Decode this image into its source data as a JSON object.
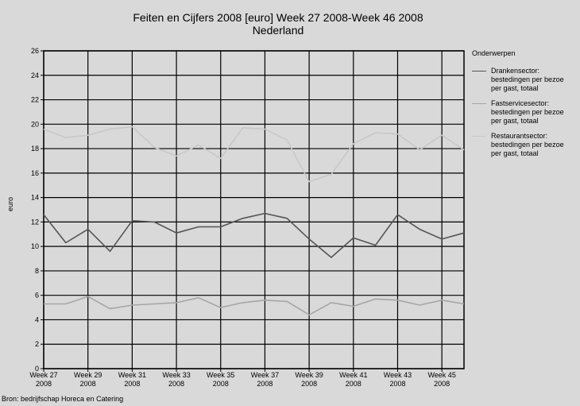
{
  "chart_data": {
    "type": "line",
    "title": "Feiten en Cijfers 2008 [euro] Week 27 2008-Week 46 2008",
    "subtitle": "Nederland",
    "ylabel": "euro",
    "ylim": [
      0,
      26
    ],
    "yticks": [
      "0",
      "2",
      "4",
      "6",
      "8",
      "10",
      "12",
      "14",
      "16",
      "18",
      "20",
      "22",
      "24",
      "26"
    ],
    "x": [
      27,
      28,
      29,
      30,
      31,
      32,
      33,
      34,
      35,
      36,
      37,
      38,
      39,
      40,
      41,
      42,
      43,
      44,
      45,
      46
    ],
    "xticks": [
      {
        "week": 27,
        "line1": "Week 27",
        "line2": "2008"
      },
      {
        "week": 29,
        "line1": "Week 29",
        "line2": "2008"
      },
      {
        "week": 31,
        "line1": "Week 31",
        "line2": "2008"
      },
      {
        "week": 33,
        "line1": "Week 33",
        "line2": "2008"
      },
      {
        "week": 35,
        "line1": "Week 35",
        "line2": "2008"
      },
      {
        "week": 37,
        "line1": "Week 37",
        "line2": "2008"
      },
      {
        "week": 39,
        "line1": "Week 39",
        "line2": "2008"
      },
      {
        "week": 41,
        "line1": "Week 41",
        "line2": "2008"
      },
      {
        "week": 43,
        "line1": "Week 43",
        "line2": "2008"
      },
      {
        "week": 45,
        "line1": "Week 45",
        "line2": "2008"
      }
    ],
    "grid": true,
    "legend_title": "Onderwerpen",
    "legend_position": "right",
    "series": [
      {
        "name": "Drankensector:\nbestedingen per bezoe\nper gast, totaal",
        "color": "#555555",
        "values": [
          12.6,
          10.3,
          11.4,
          9.6,
          12.1,
          12.0,
          11.1,
          11.6,
          11.6,
          12.3,
          12.7,
          12.3,
          10.6,
          9.1,
          10.7,
          10.1,
          12.6,
          11.4,
          10.6,
          11.1
        ]
      },
      {
        "name": "Fastservicesector:\nbestedingen per bezoe\nper gast, totaal",
        "color": "#a6a6a6",
        "values": [
          5.3,
          5.3,
          5.9,
          4.9,
          5.2,
          5.3,
          5.4,
          5.8,
          5.0,
          5.4,
          5.6,
          5.5,
          4.4,
          5.4,
          5.1,
          5.7,
          5.6,
          5.2,
          5.6,
          5.3
        ]
      },
      {
        "name": "Restaurantsector:\nbestedingen per bezoe\nper gast, totaal",
        "color": "#c8c8c8",
        "values": [
          19.6,
          18.9,
          19.1,
          19.6,
          19.8,
          18.1,
          17.4,
          18.3,
          17.2,
          19.7,
          19.6,
          18.7,
          15.3,
          15.9,
          18.4,
          19.3,
          19.2,
          17.9,
          19.1,
          17.9
        ]
      }
    ]
  },
  "source": "Bron: bedrijfschap Horeca en Catering"
}
